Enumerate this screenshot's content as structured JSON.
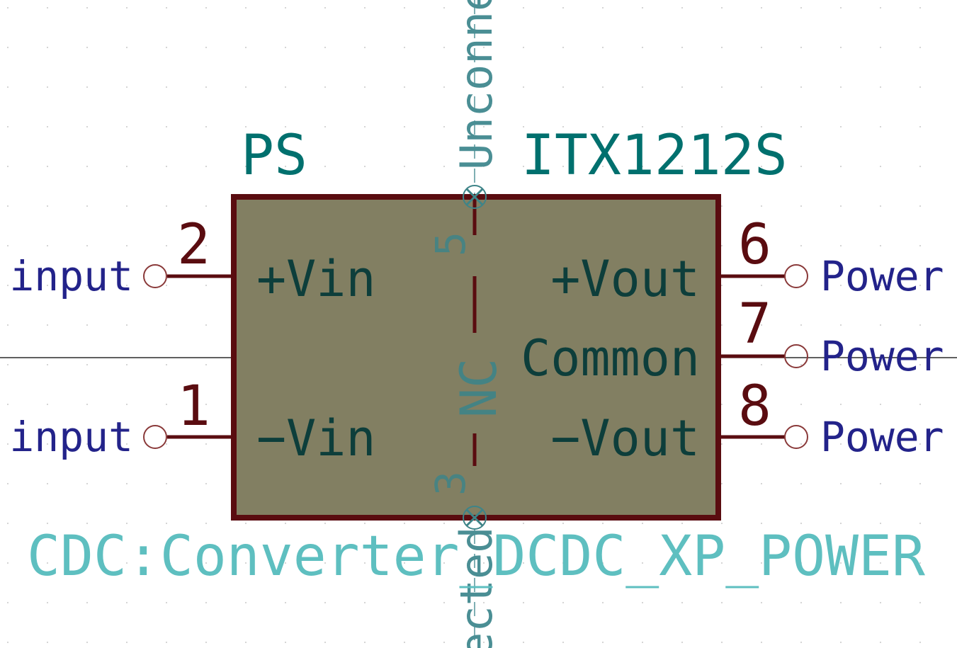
{
  "component": {
    "reference": "PS",
    "value": "ITX1212S",
    "footprint": "CDC:Converter_DCDC_XP_POWER",
    "body_labels": [
      "+Vin",
      "−Vin",
      "+Vout",
      "Common",
      "−Vout"
    ],
    "nc_label": "NC",
    "top_pin_number": "5",
    "bottom_pin_number": "3",
    "unconnected_top": "Unconne",
    "unconnected_bottom": "ected",
    "pins": {
      "vin_plus": {
        "number": "2",
        "net": "input"
      },
      "vin_minus": {
        "number": "1",
        "net": "input"
      },
      "vout_plus": {
        "number": "6",
        "net": "Power"
      },
      "common": {
        "number": "7",
        "net": "Power"
      },
      "vout_minus": {
        "number": "8",
        "net": "Power"
      }
    }
  },
  "colors": {
    "background": "#ffffff",
    "grid_dot": "#c8c8c8",
    "body_fill": "#827f62",
    "outline": "#5a0c10",
    "pin": "#5a0c10",
    "pin_number": "#5a0c10",
    "pin_name": "#0d3e3b",
    "ref_value": "#00706e",
    "footprint": "#5ebfc0",
    "net_label": "#23238a",
    "no_connect": "#3e8488",
    "hidden": "#4a8e94",
    "wire": "#000000"
  }
}
